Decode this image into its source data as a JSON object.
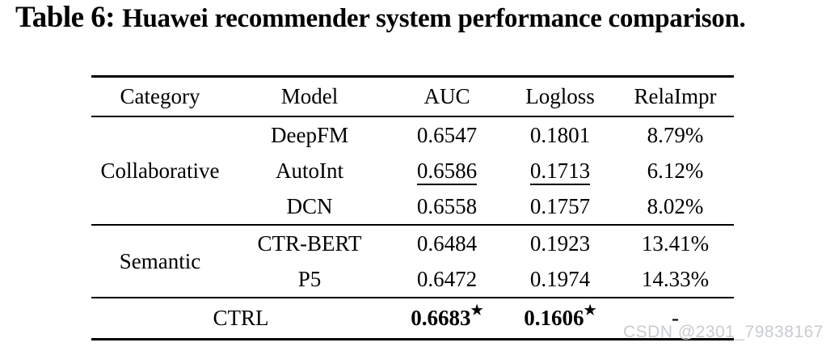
{
  "title": {
    "label": "Table 6:",
    "text": "Huawei recommender system performance comparison."
  },
  "table": {
    "headers": [
      "Category",
      "Model",
      "AUC",
      "Logloss",
      "RelaImpr"
    ],
    "groups": [
      {
        "category": "Collaborative",
        "rows": [
          {
            "model": "DeepFM",
            "auc": "0.6547",
            "logloss": "0.1801",
            "relaimpr": "8.79%"
          },
          {
            "model": "AutoInt",
            "auc": "0.6586",
            "logloss": "0.1713",
            "relaimpr": "6.12%"
          },
          {
            "model": "DCN",
            "auc": "0.6558",
            "logloss": "0.1757",
            "relaimpr": "8.02%"
          }
        ]
      },
      {
        "category": "Semantic",
        "rows": [
          {
            "model": "CTR-BERT",
            "auc": "0.6484",
            "logloss": "0.1923",
            "relaimpr": "13.41%"
          },
          {
            "model": "P5",
            "auc": "0.6472",
            "logloss": "0.1974",
            "relaimpr": "14.33%"
          }
        ]
      }
    ],
    "summary": {
      "model": "CTRL",
      "auc": "0.6683",
      "logloss": "0.1606",
      "star": "★",
      "relaimpr": "-"
    }
  },
  "watermark": "CSDN @2301_79838167",
  "colors": {
    "text": "#000000",
    "rule": "#000000",
    "watermark": "#c8ccd0"
  }
}
